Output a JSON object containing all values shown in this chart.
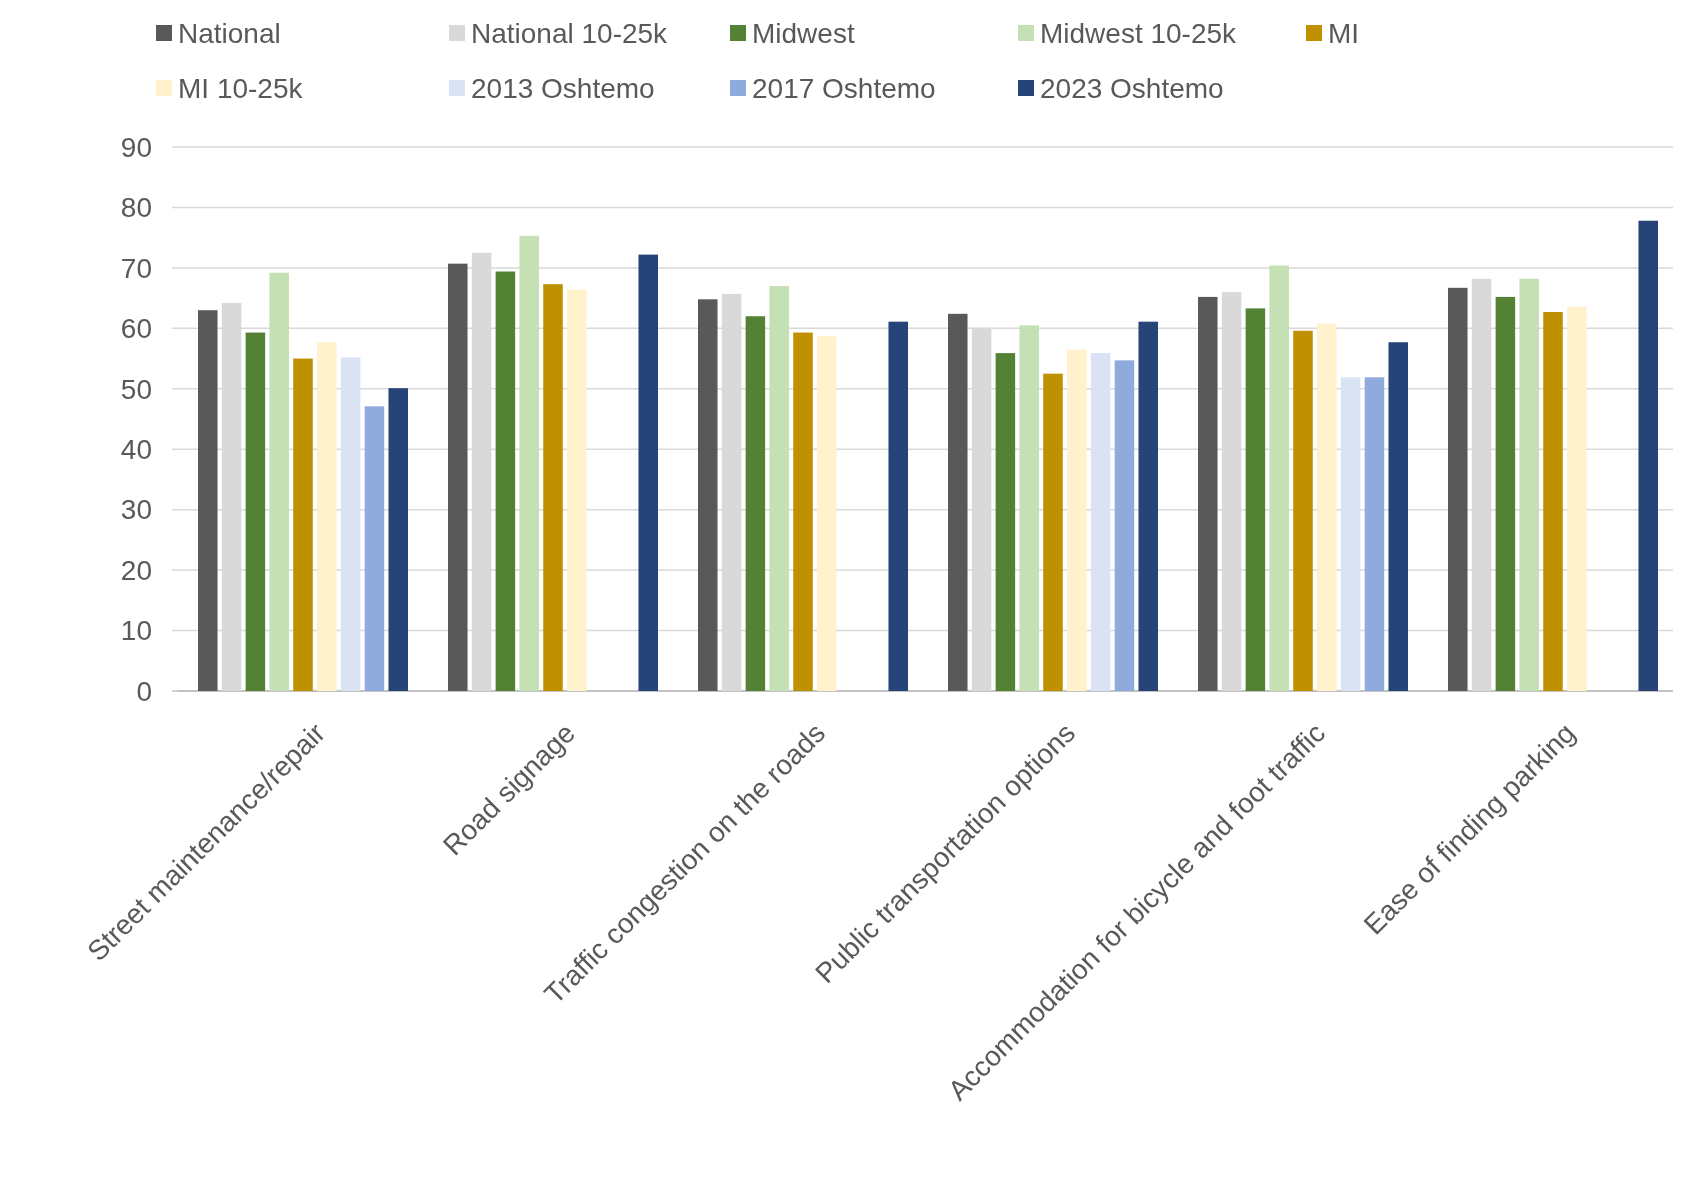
{
  "chart_data": {
    "type": "bar",
    "categories": [
      "Street maintenance/repair",
      "Road signage",
      "Traffic congestion on the roads",
      "Public transportation options",
      "Accommodation for bicycle and foot traffic",
      "Ease of finding parking"
    ],
    "series": [
      {
        "name": "National",
        "color": "#595959",
        "values": [
          63.0,
          70.7,
          64.8,
          62.4,
          65.2,
          66.7
        ]
      },
      {
        "name": "National 10-25k",
        "color": "#d9d9d9",
        "values": [
          64.2,
          72.5,
          65.7,
          60.1,
          66.0,
          68.2
        ]
      },
      {
        "name": "Midwest",
        "color": "#548235",
        "values": [
          59.3,
          69.4,
          62.0,
          55.9,
          63.3,
          65.2
        ]
      },
      {
        "name": "Midwest 10-25k",
        "color": "#c5e0b4",
        "values": [
          69.2,
          75.3,
          67.0,
          60.5,
          70.4,
          68.2
        ]
      },
      {
        "name": "MI",
        "color": "#bf9000",
        "values": [
          55.0,
          67.3,
          59.3,
          52.5,
          59.6,
          62.7
        ]
      },
      {
        "name": "MI 10-25k",
        "color": "#fff2cc",
        "values": [
          57.7,
          66.4,
          58.7,
          56.5,
          60.8,
          63.6
        ]
      },
      {
        "name": "2013 Oshtemo",
        "color": "#dae3f3",
        "values": [
          55.2,
          null,
          null,
          55.9,
          51.9,
          null
        ]
      },
      {
        "name": "2017 Oshtemo",
        "color": "#8faadc",
        "values": [
          47.1,
          null,
          null,
          54.7,
          51.9,
          null
        ]
      },
      {
        "name": "2023 Oshtemo",
        "color": "#264478",
        "values": [
          50.1,
          72.2,
          61.1,
          61.1,
          57.7,
          77.8
        ]
      }
    ],
    "ylim": [
      0,
      90
    ],
    "yticks": [
      0,
      10,
      20,
      30,
      40,
      50,
      60,
      70,
      80,
      90
    ],
    "grid": "y",
    "legend": "top"
  }
}
